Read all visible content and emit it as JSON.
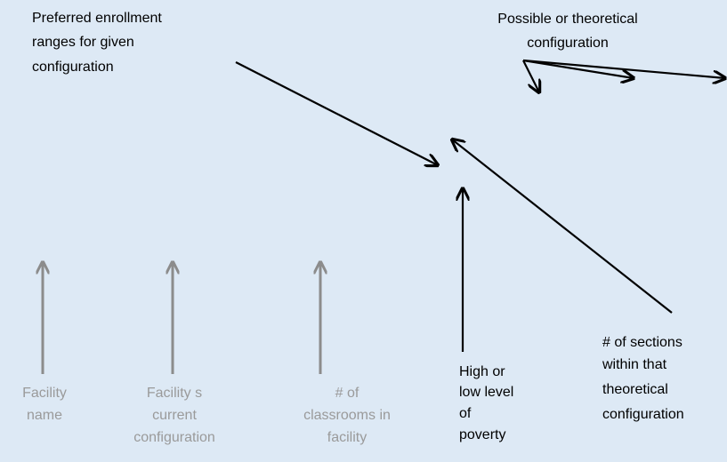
{
  "labels": [
    {
      "lines": [
        "Preferred enrollment",
        "ranges for given",
        "configuration"
      ]
    },
    {
      "lines": [
        "Possible or theoretical",
        "configuration"
      ]
    },
    {
      "lines": [
        "Facility",
        "name"
      ]
    },
    {
      "lines": [
        "Facility s",
        "current",
        "configuration"
      ]
    },
    {
      "lines": [
        "# of",
        "classrooms in",
        "facility"
      ]
    },
    {
      "lines": [
        "High or",
        "low level",
        "of",
        "poverty"
      ]
    },
    {
      "lines": [
        "# of sections",
        "within that",
        "theoretical",
        "configuration"
      ]
    }
  ]
}
